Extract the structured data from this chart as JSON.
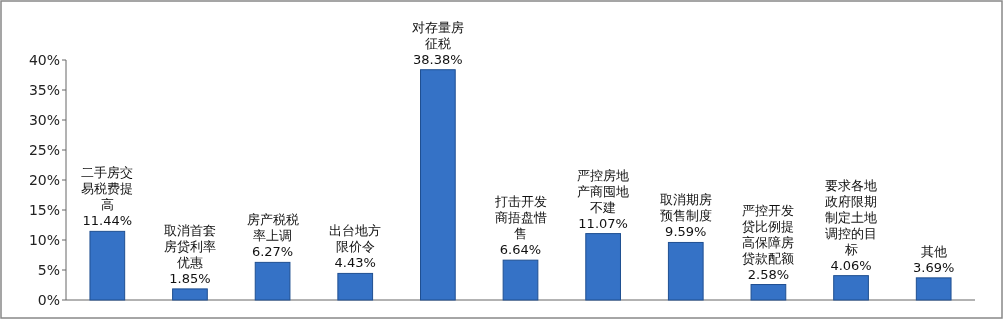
{
  "chart_data": {
    "type": "bar",
    "categories": [
      "二手房交易税费提高",
      "取消首套房贷利率优惠",
      "房产税税率上调",
      "出台地方限价令",
      "对存量房征税",
      "打击开发商捂盘惜售",
      "严控房地产商囤地不建",
      "取消期房预售制度",
      "严控开发贷比例提高保障房贷款配额",
      "要求各地政府限期制定土地调控的目标",
      "其他"
    ],
    "values": [
      11.44,
      1.85,
      6.27,
      4.43,
      38.38,
      6.64,
      11.07,
      9.59,
      2.58,
      4.06,
      3.69
    ],
    "value_labels": [
      "11.44%",
      "1.85%",
      "6.27%",
      "4.43%",
      "38.38%",
      "6.64%",
      "11.07%",
      "9.59%",
      "2.58%",
      "4.06%",
      "3.69%"
    ],
    "color": "#3572c6",
    "ylim": [
      0,
      40
    ],
    "yticks": [
      {
        "value": 0,
        "label": "0%"
      },
      {
        "value": 5,
        "label": "5%"
      },
      {
        "value": 10,
        "label": "10%"
      },
      {
        "value": 15,
        "label": "15%"
      },
      {
        "value": 20,
        "label": "20%"
      },
      {
        "value": 25,
        "label": "25%"
      },
      {
        "value": 30,
        "label": "30%"
      },
      {
        "value": 35,
        "label": "35%"
      },
      {
        "value": 40,
        "label": "40%"
      }
    ],
    "grid": false
  }
}
